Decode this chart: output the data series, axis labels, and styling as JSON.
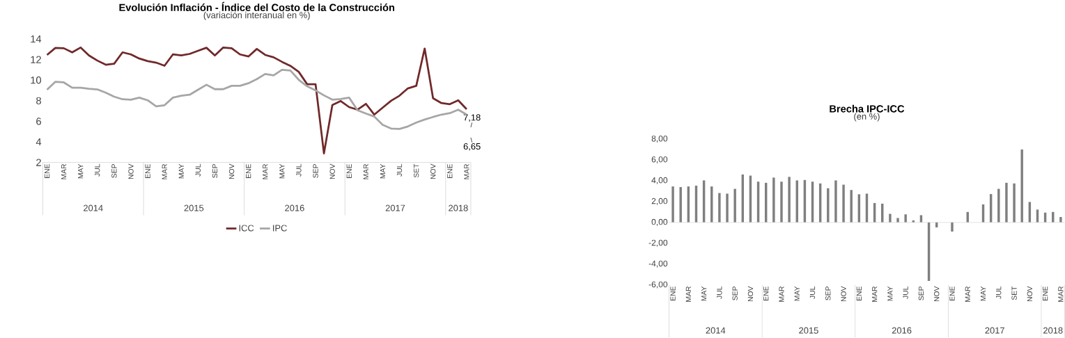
{
  "chart_data": [
    {
      "type": "line",
      "title": "Evolución Inflación - Índice del Costo de la Construcción",
      "subtitle": "(variación interanual en %)",
      "categories": [
        "ENE",
        null,
        "MAR",
        null,
        "MAY",
        null,
        "JUL",
        null,
        "SEP",
        null,
        "NOV",
        null,
        "ENE",
        null,
        "MAR",
        null,
        "MAY",
        null,
        "JUL",
        null,
        "SEP",
        null,
        "NOV",
        null,
        "ENE",
        null,
        "MAR",
        null,
        "MAY",
        null,
        "JUL",
        null,
        "SEP",
        null,
        "NOV",
        null,
        "ENE",
        null,
        "MAR",
        null,
        "MAY",
        null,
        "JUL",
        null,
        "SET",
        null,
        "NOV",
        null,
        "ENE",
        null,
        "MAR"
      ],
      "series": [
        {
          "name": "ICC",
          "color": "#70292a",
          "values": [
            12.45,
            13.13,
            13.1,
            12.7,
            13.17,
            12.4,
            11.9,
            11.5,
            11.6,
            12.7,
            12.5,
            12.1,
            11.85,
            11.7,
            11.4,
            12.5,
            12.4,
            12.55,
            12.85,
            13.15,
            12.4,
            13.17,
            13.1,
            12.5,
            12.3,
            13.03,
            12.45,
            12.22,
            11.78,
            11.39,
            10.8,
            9.6,
            9.6,
            2.88,
            7.58,
            7.97,
            7.38,
            7.13,
            7.7,
            6.65,
            7.33,
            8.0,
            8.49,
            9.2,
            9.45,
            13.07,
            8.24,
            7.77,
            7.66,
            8.04,
            7.18
          ],
          "value_labels": [
            null,
            null,
            null,
            null,
            null,
            null,
            null,
            null,
            null,
            null,
            null,
            null,
            null,
            null,
            null,
            null,
            null,
            null,
            null,
            null,
            null,
            null,
            null,
            null,
            null,
            null,
            null,
            null,
            null,
            null,
            null,
            null,
            null,
            null,
            null,
            null,
            null,
            null,
            null,
            null,
            null,
            null,
            null,
            null,
            null,
            null,
            null,
            null,
            null,
            null,
            "7,18"
          ]
        },
        {
          "name": "IPC",
          "color": "#a6a6a6",
          "values": [
            9.07,
            9.84,
            9.78,
            9.26,
            9.26,
            9.16,
            9.1,
            8.78,
            8.39,
            8.14,
            8.1,
            8.3,
            8.04,
            7.46,
            7.56,
            8.3,
            8.49,
            8.58,
            9.07,
            9.55,
            9.12,
            9.12,
            9.45,
            9.45,
            9.7,
            10.1,
            10.6,
            10.46,
            11.0,
            10.94,
            10.03,
            9.4,
            9.0,
            8.52,
            8.1,
            8.16,
            8.3,
            7.08,
            6.75,
            6.46,
            5.65,
            5.3,
            5.26,
            5.5,
            5.88,
            6.17,
            6.42,
            6.65,
            6.79,
            7.13,
            6.65
          ],
          "value_labels": [
            null,
            null,
            null,
            null,
            null,
            null,
            null,
            null,
            null,
            null,
            null,
            null,
            null,
            null,
            null,
            null,
            null,
            null,
            null,
            null,
            null,
            null,
            null,
            null,
            null,
            null,
            null,
            null,
            null,
            null,
            null,
            null,
            null,
            null,
            null,
            null,
            null,
            null,
            null,
            null,
            null,
            null,
            null,
            null,
            null,
            null,
            null,
            null,
            null,
            null,
            "6,65"
          ]
        }
      ],
      "ylim": [
        2,
        14
      ],
      "yticks": [
        2,
        4,
        6,
        8,
        10,
        12,
        14
      ],
      "legend": "bottom",
      "annotations": [
        "2014",
        "2015",
        "2016",
        "2017",
        "2018"
      ]
    },
    {
      "type": "bar",
      "title": "Brecha IPC-ICC",
      "subtitle": "(en %)",
      "categories": [
        "ENE",
        null,
        "MAR",
        null,
        "MAY",
        null,
        "JUL",
        null,
        "SEP",
        null,
        "NOV",
        null,
        "ENE",
        null,
        "MAR",
        null,
        "MAY",
        null,
        "JUL",
        null,
        "SEP",
        null,
        "NOV",
        null,
        "ENE",
        null,
        "MAR",
        null,
        "MAY",
        null,
        "JUL",
        null,
        "SEP",
        null,
        "NOV",
        null,
        "ENE",
        null,
        "MAR",
        null,
        "MAY",
        null,
        "JUL",
        null,
        "SET",
        null,
        "NOV",
        null,
        "ENE",
        null,
        "MAR"
      ],
      "values": [
        3.45,
        3.39,
        3.45,
        3.53,
        4.03,
        3.45,
        2.82,
        2.76,
        3.22,
        4.6,
        4.49,
        3.91,
        3.8,
        4.3,
        3.91,
        4.37,
        4.03,
        4.07,
        3.91,
        3.74,
        3.28,
        4.03,
        3.62,
        3.11,
        2.7,
        2.76,
        1.86,
        1.8,
        0.82,
        0.42,
        0.77,
        0.19,
        0.69,
        -5.62,
        -0.48,
        null,
        -0.88,
        null,
        1.0,
        null,
        1.73,
        2.72,
        3.22,
        3.8,
        3.74,
        7.0,
        1.96,
        1.23,
        0.94,
        1.0,
        0.52
      ],
      "color": "#7f7f7f",
      "ylim": [
        -6,
        8
      ],
      "yticks": [
        {
          "value": -6,
          "label": "-6,00"
        },
        {
          "value": -4,
          "label": "-4,00"
        },
        {
          "value": -2,
          "label": "-2,00"
        },
        {
          "value": 0,
          "label": "0,00"
        },
        {
          "value": 2,
          "label": "2,00"
        },
        {
          "value": 4,
          "label": "4,00"
        },
        {
          "value": 6,
          "label": "6,00"
        },
        {
          "value": 8,
          "label": "8,00"
        }
      ],
      "annotations": [
        "2014",
        "2015",
        "2016",
        "2017",
        "2018"
      ]
    }
  ]
}
